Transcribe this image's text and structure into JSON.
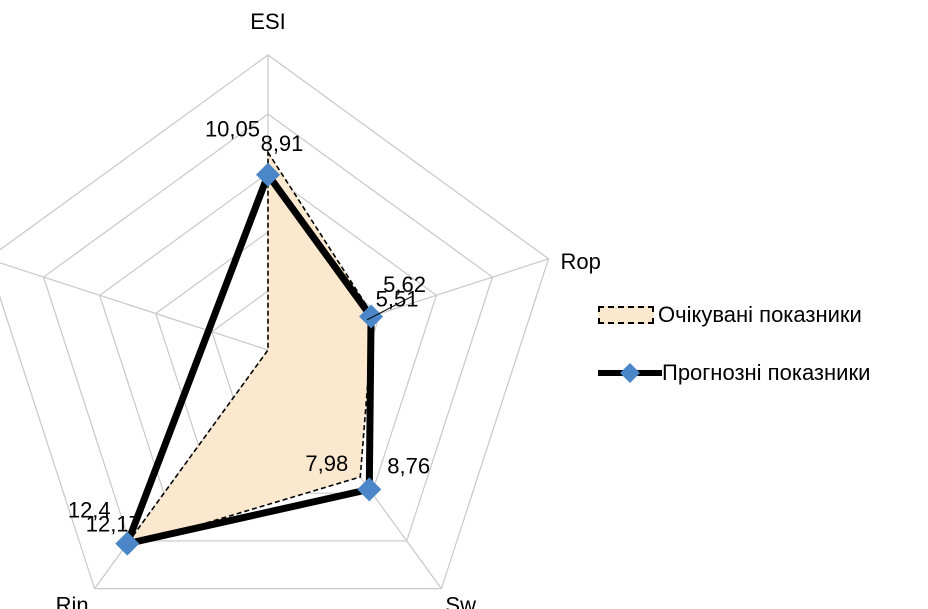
{
  "chart_data": {
    "type": "radar",
    "axes": [
      "ESI",
      "Rop",
      "Sw",
      "Rin",
      ""
    ],
    "series": [
      {
        "name": "Очікувані показники",
        "values": [
          10.05,
          5.62,
          7.98,
          12.4,
          null
        ],
        "value_labels": [
          "10,05",
          "5,62",
          "7,98",
          "12,4",
          ""
        ],
        "style": "area",
        "fill": "#fbe8cf",
        "stroke": "#000000",
        "dashed": true
      },
      {
        "name": "Прогнозні показники",
        "values": [
          8.91,
          5.51,
          8.76,
          12.17,
          null
        ],
        "value_labels": [
          "8,91",
          "5,51",
          "8,76",
          "12,17",
          ""
        ],
        "style": "line",
        "stroke": "#000000",
        "marker": "diamond",
        "marker_color": "#4a86c8"
      }
    ],
    "rmax": 15,
    "rings": 5,
    "grid": true,
    "legend_position": "right",
    "colors": {
      "grid": "#c8c8c8",
      "area_fill": "#fbe8cf",
      "line": "#000000",
      "marker": "#4a86c8"
    }
  }
}
